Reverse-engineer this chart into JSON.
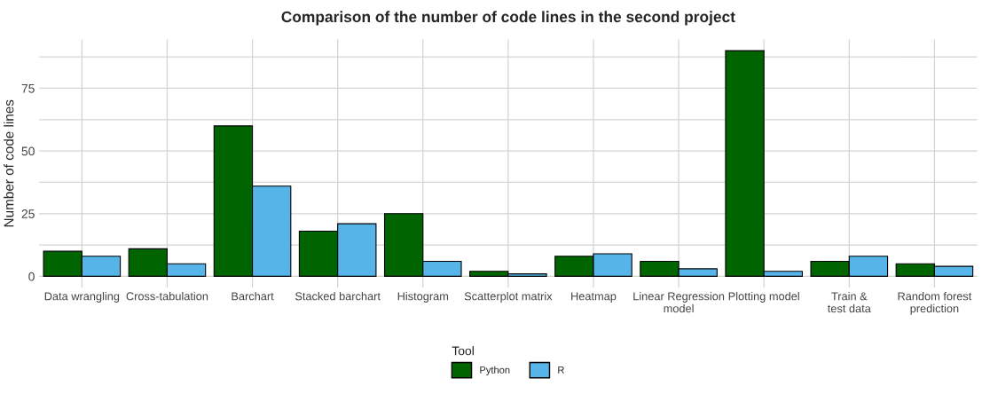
{
  "chart_data": {
    "type": "bar",
    "title": "Comparison of the number of code lines in the second project",
    "ylabel": "Number of code lines",
    "legend_title": "Tool",
    "categories": [
      "Data wrangling",
      "Cross-tabulation",
      "Barchart",
      "Stacked barchart",
      "Histogram",
      "Scatterplot matrix",
      "Heatmap",
      "Linear Regression\nmodel",
      "Plotting model",
      "Train &\ntest data",
      "Random forest\nprediction"
    ],
    "series": [
      {
        "name": "Python",
        "color": "#006400",
        "values": [
          10,
          11,
          60,
          18,
          25,
          2,
          8,
          6,
          90,
          6,
          5
        ]
      },
      {
        "name": "R",
        "color": "#56b4e9",
        "values": [
          8,
          5,
          36,
          21,
          6,
          1,
          9,
          3,
          2,
          8,
          4
        ]
      }
    ],
    "ylim": [
      -4.5,
      94.5
    ],
    "yticks": [
      0,
      {
        "value": 12.5,
        "label": null
      },
      25,
      {
        "value": 37.5,
        "label": null
      },
      50,
      {
        "value": 62.5,
        "label": null
      },
      75,
      {
        "value": 87.5,
        "label": null
      }
    ],
    "grid": true,
    "legend": "bottom"
  }
}
